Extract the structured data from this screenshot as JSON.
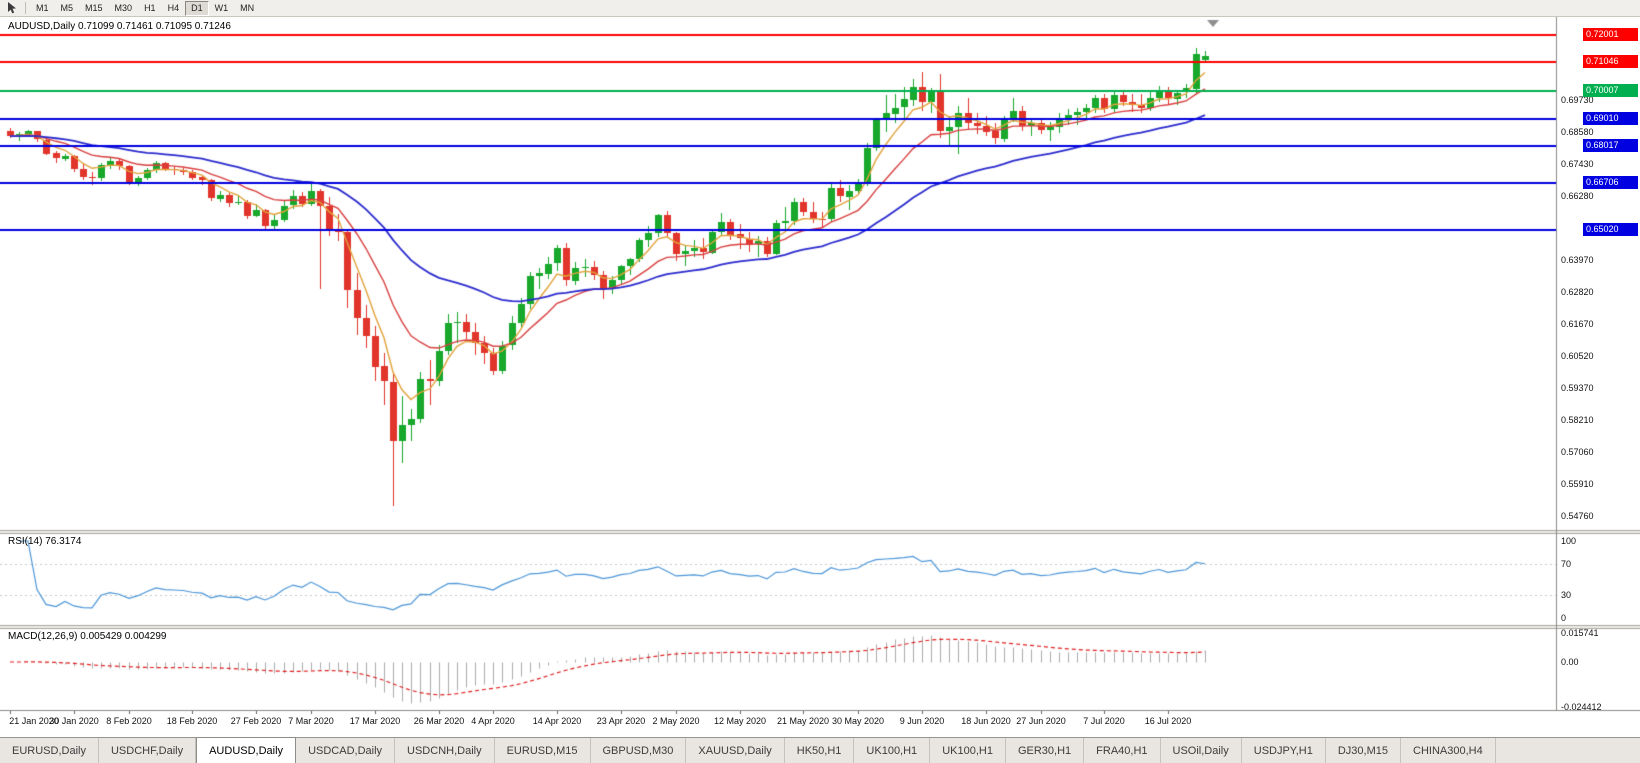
{
  "toolbar": {
    "active_timeframe": "D1",
    "timeframes": [
      {
        "label": "M1"
      },
      {
        "label": "M5"
      },
      {
        "label": "M15"
      },
      {
        "label": "M30"
      },
      {
        "label": "H1"
      },
      {
        "label": "H4"
      },
      {
        "label": "D1",
        "active": true
      },
      {
        "label": "W1"
      },
      {
        "label": "MN"
      }
    ]
  },
  "tabs": {
    "active_index": 2,
    "items": [
      {
        "label": "EURUSD,Daily"
      },
      {
        "label": "USDCHF,Daily"
      },
      {
        "label": "AUDUSD,Daily"
      },
      {
        "label": "USDCAD,Daily"
      },
      {
        "label": "USDCNH,Daily"
      },
      {
        "label": "EURUSD,M15"
      },
      {
        "label": "GBPUSD,M30"
      },
      {
        "label": "XAUUSD,Daily"
      },
      {
        "label": "HK50,H1"
      },
      {
        "label": "UK100,H1"
      },
      {
        "label": "UK100,H1"
      },
      {
        "label": "GER30,H1"
      },
      {
        "label": "FRA40,H1"
      },
      {
        "label": "USOil,Daily"
      },
      {
        "label": "USDJPY,H1"
      },
      {
        "label": "DJ30,M15"
      },
      {
        "label": "CHINA300,H4"
      }
    ]
  },
  "chart_data": {
    "type": "candlestick",
    "symbol": "AUDUSD",
    "period": "Daily",
    "info_line": "AUDUSD,Daily 0.71099 0.71461 0.71095 0.71246",
    "ohlc": {
      "open": "0.71099",
      "high": "0.71461",
      "low": "0.71095",
      "close": "0.71246"
    },
    "price_range": {
      "max": 0.7245,
      "min": 0.544
    },
    "colors": {
      "up": "#17A82C",
      "down": "#E1352B",
      "rsi": "#4C96D8",
      "macd_hist": "#ABABAB",
      "macd_signal": "#E02020"
    },
    "moving_averages": [
      {
        "name": "ma-fast",
        "period": 5,
        "color": "#E2A33C",
        "width": 1.4
      },
      {
        "name": "ma-medium",
        "period": 13,
        "color": "#D94040",
        "width": 1.4
      },
      {
        "name": "ma-slow",
        "period": 34,
        "color": "#2B2BCE",
        "width": 1.8
      }
    ],
    "price_lines": [
      {
        "text": "0.72001",
        "price": 0.72001,
        "color": "#FF0000"
      },
      {
        "text": "0.71046",
        "price": 0.71046,
        "color": "#FF0000"
      },
      {
        "text": "0.70007",
        "price": 0.70007,
        "color": "#00B050"
      },
      {
        "text": "0.69010",
        "price": 0.6901,
        "color": "#0000E0"
      },
      {
        "text": "0.68017",
        "price": 0.68017,
        "color": "#0000E0"
      },
      {
        "text": "0.66706",
        "price": 0.66706,
        "color": "#0000E0"
      },
      {
        "text": "0.65020",
        "price": 0.6502,
        "color": "#0000E0"
      }
    ],
    "y_axis_labels": [
      "0.69730",
      "0.68580",
      "0.67430",
      "0.66280",
      "0.63970",
      "0.62820",
      "0.61670",
      "0.60520",
      "0.59370",
      "0.58210",
      "0.57060",
      "0.55910",
      "0.54760"
    ],
    "x_axis_labels": [
      {
        "text": "21 Jan 2020",
        "index": 0
      },
      {
        "text": "30 Jan 2020",
        "index": 7
      },
      {
        "text": "8 Feb 2020",
        "index": 13
      },
      {
        "text": "18 Feb 2020",
        "index": 20
      },
      {
        "text": "27 Feb 2020",
        "index": 27
      },
      {
        "text": "7 Mar 2020",
        "index": 33
      },
      {
        "text": "17 Mar 2020",
        "index": 40
      },
      {
        "text": "26 Mar 2020",
        "index": 47
      },
      {
        "text": "4 Apr 2020",
        "index": 53
      },
      {
        "text": "14 Apr 2020",
        "index": 60
      },
      {
        "text": "23 Apr 2020",
        "index": 67
      },
      {
        "text": "2 May 2020",
        "index": 73
      },
      {
        "text": "12 May 2020",
        "index": 80
      },
      {
        "text": "21 May 2020",
        "index": 87
      },
      {
        "text": "30 May 2020",
        "index": 93
      },
      {
        "text": "9 Jun 2020",
        "index": 100
      },
      {
        "text": "18 Jun 2020",
        "index": 107
      },
      {
        "text": "27 Jun 2020",
        "index": 113
      },
      {
        "text": "7 Jul 2020",
        "index": 120
      },
      {
        "text": "16 Jul 2020",
        "index": 127
      }
    ],
    "indicators": {
      "rsi": {
        "text": "RSI(14) 76.3174",
        "levels": [
          70,
          30
        ],
        "scale_labels": [
          {
            "text": "100",
            "value": 100
          },
          {
            "text": "70",
            "value": 70
          },
          {
            "text": "30",
            "value": 30
          },
          {
            "text": "0",
            "value": 0
          }
        ]
      },
      "macd": {
        "text": "MACD(12,26,9) 0.005429 0.004299",
        "scale_labels": [
          {
            "text": "0.015741",
            "value": 0.015741
          },
          {
            "text": "0.00",
            "value": 0
          },
          {
            "text": "-0.024412",
            "value": -0.024412
          }
        ]
      }
    },
    "candles": [
      [
        0.6857,
        0.6866,
        0.6832,
        0.6838
      ],
      [
        0.6838,
        0.6852,
        0.682,
        0.6845
      ],
      [
        0.6845,
        0.6861,
        0.6838,
        0.6855
      ],
      [
        0.6855,
        0.6858,
        0.6818,
        0.6826
      ],
      [
        0.6826,
        0.6831,
        0.677,
        0.6776
      ],
      [
        0.6776,
        0.6784,
        0.6743,
        0.6757
      ],
      [
        0.6757,
        0.6774,
        0.6748,
        0.6767
      ],
      [
        0.6767,
        0.6772,
        0.671,
        0.672
      ],
      [
        0.672,
        0.6738,
        0.6682,
        0.669
      ],
      [
        0.669,
        0.6708,
        0.6662,
        0.6688
      ],
      [
        0.6688,
        0.674,
        0.6678,
        0.6735
      ],
      [
        0.6735,
        0.676,
        0.672,
        0.6748
      ],
      [
        0.6748,
        0.6755,
        0.6718,
        0.673
      ],
      [
        0.673,
        0.6733,
        0.6662,
        0.667
      ],
      [
        0.667,
        0.6695,
        0.6658,
        0.6687
      ],
      [
        0.6687,
        0.6722,
        0.668,
        0.6715
      ],
      [
        0.6715,
        0.6748,
        0.6705,
        0.674
      ],
      [
        0.674,
        0.6745,
        0.6712,
        0.672
      ],
      [
        0.672,
        0.6732,
        0.67,
        0.6716
      ],
      [
        0.6716,
        0.6725,
        0.6698,
        0.671
      ],
      [
        0.671,
        0.6715,
        0.668,
        0.669
      ],
      [
        0.669,
        0.6695,
        0.6662,
        0.668
      ],
      [
        0.668,
        0.6685,
        0.6605,
        0.6615
      ],
      [
        0.6615,
        0.664,
        0.6603,
        0.6628
      ],
      [
        0.6628,
        0.6632,
        0.6585,
        0.66
      ],
      [
        0.66,
        0.6622,
        0.659,
        0.6602
      ],
      [
        0.6602,
        0.661,
        0.6542,
        0.6552
      ],
      [
        0.6552,
        0.6595,
        0.6548,
        0.6572
      ],
      [
        0.6572,
        0.6578,
        0.6505,
        0.6515
      ],
      [
        0.6515,
        0.6558,
        0.6498,
        0.6538
      ],
      [
        0.6538,
        0.661,
        0.6528,
        0.6588
      ],
      [
        0.6588,
        0.6645,
        0.6576,
        0.6622
      ],
      [
        0.6622,
        0.6638,
        0.6585,
        0.6595
      ],
      [
        0.6595,
        0.667,
        0.6588,
        0.6642
      ],
      [
        0.6642,
        0.6648,
        0.629,
        0.6588
      ],
      [
        0.6588,
        0.6618,
        0.6478,
        0.65
      ],
      [
        0.65,
        0.656,
        0.646,
        0.6492
      ],
      [
        0.6492,
        0.6505,
        0.622,
        0.6285
      ],
      [
        0.6285,
        0.6345,
        0.6123,
        0.6185
      ],
      [
        0.6185,
        0.623,
        0.6075,
        0.612
      ],
      [
        0.612,
        0.6155,
        0.5958,
        0.601
      ],
      [
        0.601,
        0.606,
        0.587,
        0.5955
      ],
      [
        0.5955,
        0.5988,
        0.551,
        0.5742
      ],
      [
        0.5742,
        0.5905,
        0.5662,
        0.58
      ],
      [
        0.58,
        0.5858,
        0.5742,
        0.582
      ],
      [
        0.582,
        0.599,
        0.5805,
        0.5965
      ],
      [
        0.5965,
        0.6035,
        0.587,
        0.5958
      ],
      [
        0.5958,
        0.6088,
        0.594,
        0.6065
      ],
      [
        0.6065,
        0.6198,
        0.6052,
        0.6165
      ],
      [
        0.6165,
        0.6205,
        0.6095,
        0.617
      ],
      [
        0.617,
        0.62,
        0.611,
        0.6135
      ],
      [
        0.6135,
        0.6165,
        0.605,
        0.6095
      ],
      [
        0.6095,
        0.6118,
        0.602,
        0.606
      ],
      [
        0.606,
        0.6075,
        0.598,
        0.5995
      ],
      [
        0.5995,
        0.61,
        0.5982,
        0.6085
      ],
      [
        0.6085,
        0.619,
        0.6068,
        0.6165
      ],
      [
        0.6165,
        0.6255,
        0.615,
        0.6235
      ],
      [
        0.6235,
        0.635,
        0.6215,
        0.6335
      ],
      [
        0.6335,
        0.6365,
        0.629,
        0.6345
      ],
      [
        0.6345,
        0.6405,
        0.6325,
        0.638
      ],
      [
        0.638,
        0.6445,
        0.6355,
        0.6435
      ],
      [
        0.6435,
        0.6455,
        0.63,
        0.632
      ],
      [
        0.632,
        0.6385,
        0.6302,
        0.6365
      ],
      [
        0.6365,
        0.6395,
        0.6332,
        0.6368
      ],
      [
        0.6368,
        0.6388,
        0.632,
        0.634
      ],
      [
        0.634,
        0.6355,
        0.6253,
        0.629
      ],
      [
        0.629,
        0.6335,
        0.627,
        0.632
      ],
      [
        0.632,
        0.6375,
        0.6305,
        0.637
      ],
      [
        0.637,
        0.64,
        0.634,
        0.6395
      ],
      [
        0.6395,
        0.6472,
        0.6385,
        0.6465
      ],
      [
        0.6465,
        0.6515,
        0.644,
        0.649
      ],
      [
        0.649,
        0.656,
        0.6475,
        0.6555
      ],
      [
        0.6555,
        0.657,
        0.6475,
        0.649
      ],
      [
        0.649,
        0.6495,
        0.639,
        0.6415
      ],
      [
        0.6415,
        0.6448,
        0.6372,
        0.6425
      ],
      [
        0.6425,
        0.6465,
        0.6403,
        0.6435
      ],
      [
        0.6435,
        0.6472,
        0.6398,
        0.642
      ],
      [
        0.642,
        0.6505,
        0.6415,
        0.6495
      ],
      [
        0.6495,
        0.6562,
        0.6478,
        0.653
      ],
      [
        0.653,
        0.654,
        0.6463,
        0.6485
      ],
      [
        0.6485,
        0.6522,
        0.6432,
        0.647
      ],
      [
        0.647,
        0.6495,
        0.642,
        0.645
      ],
      [
        0.645,
        0.6478,
        0.6402,
        0.646
      ],
      [
        0.646,
        0.6475,
        0.6403,
        0.6415
      ],
      [
        0.6415,
        0.6535,
        0.641,
        0.6525
      ],
      [
        0.6525,
        0.6585,
        0.6505,
        0.6532
      ],
      [
        0.6532,
        0.6617,
        0.652,
        0.66
      ],
      [
        0.66,
        0.6616,
        0.6552,
        0.6565
      ],
      [
        0.6565,
        0.66,
        0.6525,
        0.654
      ],
      [
        0.654,
        0.6565,
        0.651,
        0.6538
      ],
      [
        0.6538,
        0.6665,
        0.653,
        0.665
      ],
      [
        0.665,
        0.668,
        0.6602,
        0.662
      ],
      [
        0.662,
        0.6662,
        0.6572,
        0.664
      ],
      [
        0.664,
        0.6685,
        0.6625,
        0.6665
      ],
      [
        0.6665,
        0.6815,
        0.6658,
        0.6795
      ],
      [
        0.6795,
        0.69,
        0.6785,
        0.6895
      ],
      [
        0.6895,
        0.6985,
        0.6852,
        0.692
      ],
      [
        0.692,
        0.6988,
        0.6885,
        0.694
      ],
      [
        0.694,
        0.7015,
        0.6905,
        0.697
      ],
      [
        0.697,
        0.7042,
        0.6945,
        0.7015
      ],
      [
        0.7015,
        0.7068,
        0.693,
        0.696
      ],
      [
        0.696,
        0.701,
        0.692,
        0.7
      ],
      [
        0.7,
        0.7063,
        0.6832,
        0.6855
      ],
      [
        0.6855,
        0.691,
        0.68,
        0.687
      ],
      [
        0.687,
        0.6948,
        0.6775,
        0.692
      ],
      [
        0.692,
        0.6977,
        0.6865,
        0.6885
      ],
      [
        0.6885,
        0.692,
        0.6845,
        0.6875
      ],
      [
        0.6875,
        0.691,
        0.6838,
        0.6855
      ],
      [
        0.6855,
        0.6885,
        0.681,
        0.683
      ],
      [
        0.683,
        0.691,
        0.6818,
        0.6905
      ],
      [
        0.6905,
        0.6975,
        0.689,
        0.693
      ],
      [
        0.693,
        0.6945,
        0.6855,
        0.6875
      ],
      [
        0.6875,
        0.6905,
        0.684,
        0.6885
      ],
      [
        0.6885,
        0.69,
        0.6845,
        0.686
      ],
      [
        0.686,
        0.689,
        0.682,
        0.687
      ],
      [
        0.687,
        0.692,
        0.685,
        0.69
      ],
      [
        0.69,
        0.6935,
        0.688,
        0.6915
      ],
      [
        0.6915,
        0.694,
        0.688,
        0.6925
      ],
      [
        0.6925,
        0.6955,
        0.69,
        0.694
      ],
      [
        0.694,
        0.6985,
        0.692,
        0.6975
      ],
      [
        0.6975,
        0.699,
        0.692,
        0.6935
      ],
      [
        0.6935,
        0.6998,
        0.692,
        0.6985
      ],
      [
        0.6985,
        0.7,
        0.6945,
        0.696
      ],
      [
        0.696,
        0.699,
        0.6925,
        0.695
      ],
      [
        0.695,
        0.699,
        0.692,
        0.694
      ],
      [
        0.694,
        0.7,
        0.693,
        0.6975
      ],
      [
        0.6975,
        0.702,
        0.696,
        0.7
      ],
      [
        0.7,
        0.7015,
        0.6955,
        0.6975
      ],
      [
        0.6975,
        0.7005,
        0.695,
        0.6995
      ],
      [
        0.6995,
        0.7025,
        0.6975,
        0.701
      ],
      [
        0.701,
        0.7155,
        0.699,
        0.7135
      ],
      [
        0.71099,
        0.71461,
        0.71095,
        0.71246
      ]
    ]
  }
}
